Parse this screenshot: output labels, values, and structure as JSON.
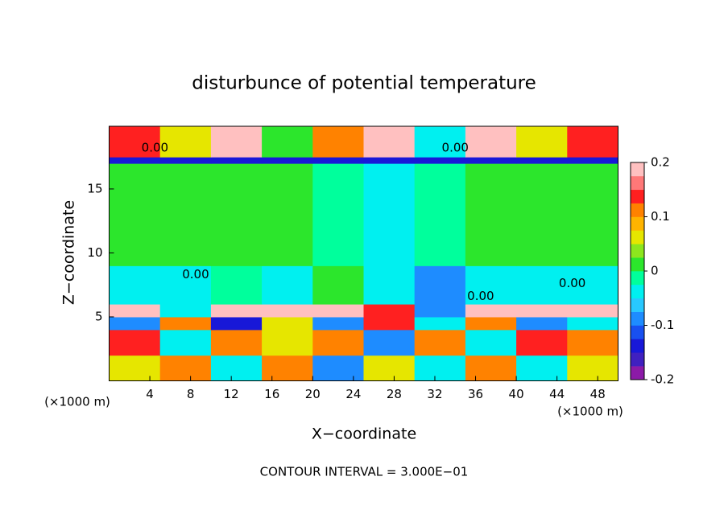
{
  "chart_data": {
    "type": "heatmap",
    "title": "disturbunce of potential temperature",
    "xlabel": "X−coordinate",
    "ylabel": "Z−coordinate",
    "x_unit": "(×1000 m)",
    "z_unit": "(×1000 m)",
    "footnote": "CONTOUR INTERVAL = 3.000E−01",
    "xlim": [
      0,
      50
    ],
    "ylim": [
      0,
      19.9
    ],
    "xticks": [
      4,
      8,
      12,
      16,
      20,
      24,
      28,
      32,
      36,
      40,
      44,
      48
    ],
    "yticks": [
      5,
      10,
      15
    ],
    "x_edges": [
      0,
      5,
      10,
      15,
      20,
      25,
      30,
      35,
      40,
      45,
      50
    ],
    "z_edges": [
      0,
      2,
      4,
      5,
      6,
      9,
      17,
      17.5,
      19.9
    ],
    "values": [
      [
        0.05,
        0.1,
        -0.05,
        0.1,
        -0.1,
        0.05,
        -0.05,
        0.1,
        -0.05,
        0.05
      ],
      [
        0.15,
        -0.05,
        0.1,
        0.05,
        0.1,
        -0.1,
        0.1,
        -0.05,
        0.15,
        0.1
      ],
      [
        -0.1,
        0.1,
        -0.15,
        0.05,
        -0.1,
        0.15,
        -0.05,
        0.1,
        -0.1,
        -0.05
      ],
      [
        0.2,
        -0.05,
        0.2,
        0.2,
        0.2,
        0.15,
        -0.1,
        0.2,
        0.2,
        0.2
      ],
      [
        -0.03,
        -0.05,
        -0.02,
        -0.04,
        0,
        -0.05,
        -0.08,
        -0.04,
        -0.03,
        -0.05
      ],
      [
        0.01,
        0.01,
        0.01,
        0,
        -0.02,
        -0.04,
        -0.02,
        0,
        0.01,
        0.01
      ],
      [
        -0.15,
        -0.15,
        -0.15,
        -0.15,
        -0.15,
        -0.15,
        -0.15,
        -0.15,
        -0.15,
        -0.15
      ],
      [
        0.15,
        0.05,
        0.2,
        0.0,
        0.1,
        0.2,
        -0.05,
        0.2,
        0.05,
        0.15
      ]
    ],
    "contour_labels": [
      {
        "text": "0.00",
        "x": 4.5,
        "y": 18.2
      },
      {
        "text": "0.00",
        "x": 34,
        "y": 18.2
      },
      {
        "text": "0.00",
        "x": 8.5,
        "y": 8.3
      },
      {
        "text": "0.00",
        "x": 36.5,
        "y": 6.6
      },
      {
        "text": "0.00",
        "x": 45.5,
        "y": 7.6
      }
    ],
    "colorbar_lim": [
      -0.2,
      0.2
    ],
    "colorbar_ticks": [
      -0.2,
      -0.1,
      0,
      0.1,
      0.2
    ],
    "colormap": [
      "#8c1aa8",
      "#4020c0",
      "#1818d8",
      "#1850f0",
      "#1e8cff",
      "#28c8ff",
      "#00f0f0",
      "#00ff9c",
      "#2ce62c",
      "#8ce61e",
      "#e6e600",
      "#ffb400",
      "#ff8200",
      "#ff2020",
      "#ff7878",
      "#ffc0c0"
    ]
  }
}
